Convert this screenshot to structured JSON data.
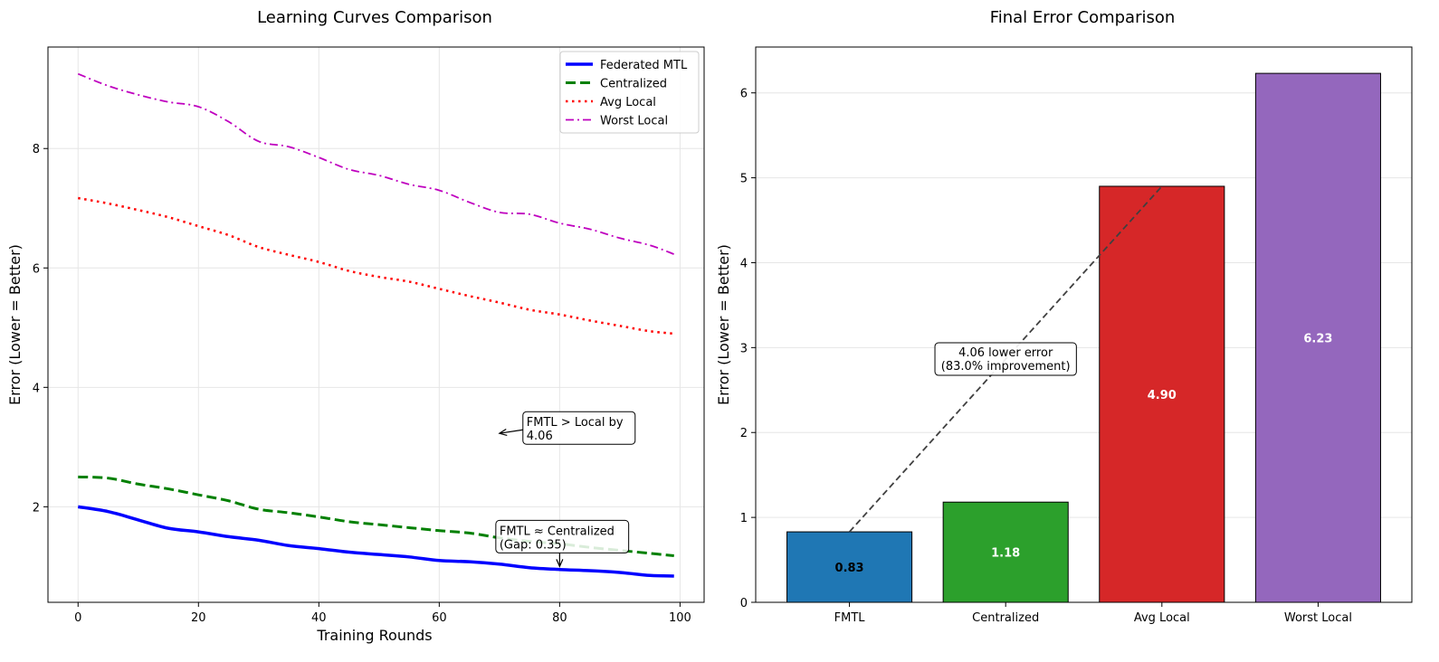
{
  "chart_data": [
    {
      "type": "line",
      "title": "Learning Curves Comparison",
      "xlabel": "Training Rounds",
      "ylabel": "Error (Lower = Better)",
      "xlim": [
        -5,
        104
      ],
      "ylim": [
        0.4,
        9.7
      ],
      "xticks": [
        0,
        20,
        40,
        60,
        80,
        100
      ],
      "xtick_labels": [
        "0",
        "20",
        "40",
        "60",
        "80",
        "100"
      ],
      "yticks": [
        2,
        4,
        6,
        8
      ],
      "ytick_labels": [
        "2",
        "4",
        "6",
        "8"
      ],
      "grid": true,
      "legend_position": "top-right",
      "x": [
        0,
        5,
        10,
        15,
        20,
        25,
        30,
        35,
        40,
        45,
        50,
        55,
        60,
        65,
        70,
        75,
        80,
        85,
        90,
        95,
        99
      ],
      "series": [
        {
          "name": "Federated MTL",
          "color": "#0000ff",
          "style": "solid",
          "values": [
            2.0,
            1.92,
            1.78,
            1.64,
            1.58,
            1.5,
            1.44,
            1.35,
            1.3,
            1.24,
            1.2,
            1.16,
            1.1,
            1.08,
            1.04,
            0.98,
            0.95,
            0.93,
            0.9,
            0.85,
            0.84
          ]
        },
        {
          "name": "Centralized",
          "color": "#008000",
          "style": "dashed",
          "values": [
            2.5,
            2.48,
            2.38,
            2.3,
            2.2,
            2.1,
            1.96,
            1.9,
            1.83,
            1.75,
            1.7,
            1.65,
            1.6,
            1.56,
            1.48,
            1.42,
            1.38,
            1.32,
            1.27,
            1.22,
            1.18
          ]
        },
        {
          "name": "Avg Local",
          "color": "#ff0000",
          "style": "dotted",
          "values": [
            7.17,
            7.08,
            6.97,
            6.85,
            6.7,
            6.55,
            6.35,
            6.22,
            6.1,
            5.95,
            5.85,
            5.77,
            5.65,
            5.53,
            5.42,
            5.3,
            5.22,
            5.12,
            5.03,
            4.94,
            4.9
          ]
        },
        {
          "name": "Worst Local",
          "color": "#bf00bf",
          "style": "dashdot",
          "values": [
            9.25,
            9.05,
            8.9,
            8.78,
            8.7,
            8.45,
            8.12,
            8.03,
            7.85,
            7.65,
            7.55,
            7.4,
            7.3,
            7.1,
            6.93,
            6.9,
            6.75,
            6.65,
            6.5,
            6.38,
            6.23
          ]
        }
      ],
      "annotations": [
        {
          "text": "FMTL > Local by\n4.06",
          "text_xy": [
            74.5,
            3.35
          ],
          "arrow_to": [
            70,
            3.23
          ]
        },
        {
          "text": "FMTL ≈ Centralized\n(Gap: 0.35)",
          "text_xy": [
            70,
            1.53
          ],
          "arrow_to": [
            80,
            1.0
          ]
        }
      ]
    },
    {
      "type": "bar",
      "title": "Final Error Comparison",
      "xlabel": "",
      "ylabel": "Error (Lower = Better)",
      "ylim": [
        0,
        6.54
      ],
      "yticks": [
        0,
        1,
        2,
        3,
        4,
        5,
        6
      ],
      "ytick_labels": [
        "0",
        "1",
        "2",
        "3",
        "4",
        "5",
        "6"
      ],
      "grid": true,
      "categories": [
        "FMTL",
        "Centralized",
        "Avg Local",
        "Worst Local"
      ],
      "values": [
        0.83,
        1.18,
        4.9,
        6.23
      ],
      "value_labels": [
        "0.83",
        "1.18",
        "4.90",
        "6.23"
      ],
      "colors": [
        "#1f77b4",
        "#2ca02c",
        "#d62728",
        "#9467bd"
      ],
      "label_colors": [
        "#000000",
        "#ffffff",
        "#ffffff",
        "#ffffff"
      ],
      "annotations": [
        {
          "text": "4.06 lower error\n(83.0% improvement)",
          "line_from": [
            0,
            0.83
          ],
          "line_to": [
            2,
            4.9
          ]
        }
      ]
    }
  ]
}
